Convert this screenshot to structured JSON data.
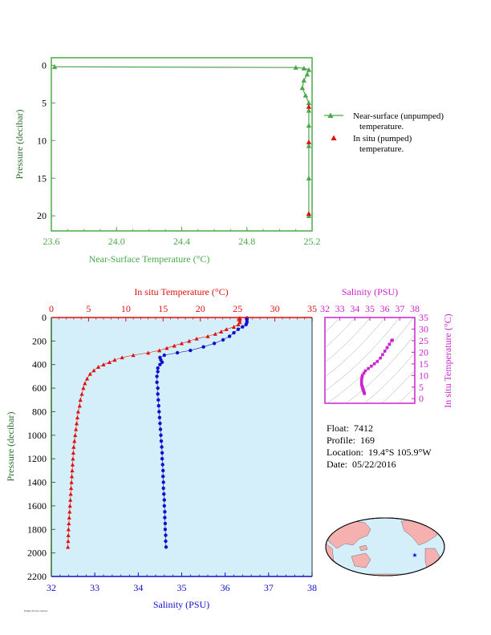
{
  "colors": {
    "green": "#4aa84a",
    "red": "#e01010",
    "blue": "#1010cc",
    "magenta": "#cc22cc",
    "dark_green": "#2e6e2e",
    "panel_bg": "#d4effa"
  },
  "float_info": {
    "float_label": "Float:",
    "float_value": "7412",
    "profile_label": "Profile:",
    "profile_value": "169",
    "location_label": "Location:",
    "location_value": "19.4°S  105.9°W",
    "date_label": "Date:",
    "date_value": "05/22/2016"
  },
  "footer_text": "PMEL/NOAA ARGO",
  "legend": {
    "near_surface_line1": "Near-surface (unpumped)",
    "near_surface_line2": "temperature.",
    "in_situ_line1": "In situ (pumped)",
    "in_situ_line2": "temperature."
  },
  "chart_data": [
    {
      "type": "line",
      "xlabel": "Near-Surface Temperature (°C)",
      "ylabel": "Pressure (decibar)",
      "xlim": [
        23.6,
        25.2
      ],
      "ylim": [
        22,
        -1
      ],
      "xticks": [
        "23.6",
        "24.0",
        "24.4",
        "24.8",
        "25.2"
      ],
      "yticks": [
        "0",
        "5",
        "10",
        "15",
        "20"
      ],
      "series": [
        {
          "name": "Near-surface (unpumped) temperature.",
          "points": [
            [
              23.62,
              0.2
            ],
            [
              25.1,
              0.3
            ],
            [
              25.15,
              0.4
            ],
            [
              25.18,
              0.6
            ],
            [
              25.17,
              1.2
            ],
            [
              25.15,
              2.0
            ],
            [
              25.14,
              3.0
            ],
            [
              25.16,
              4.0
            ],
            [
              25.18,
              5.0
            ],
            [
              25.18,
              6.0
            ],
            [
              25.18,
              8.0
            ],
            [
              25.18,
              10.7
            ],
            [
              25.18,
              15.0
            ],
            [
              25.18,
              20.0
            ]
          ]
        },
        {
          "name": "In situ (pumped) temperature.",
          "points": [
            [
              25.18,
              5.5
            ],
            [
              25.18,
              10.2
            ],
            [
              25.18,
              19.7
            ]
          ]
        }
      ]
    },
    {
      "type": "scatter",
      "ylabel": "Pressure (decibar)",
      "top_xlabel": "In situ Temperature (°C)",
      "bottom_xlabel": "Salinity (PSU)",
      "temperature_xlim": [
        0,
        35
      ],
      "salinity_xlim": [
        32,
        38
      ],
      "ylim": [
        2200,
        0
      ],
      "temperature_ticks": [
        "0",
        "5",
        "10",
        "15",
        "20",
        "25",
        "30",
        "35"
      ],
      "salinity_ticks": [
        "32",
        "33",
        "34",
        "35",
        "36",
        "37",
        "38"
      ],
      "pressure_ticks": [
        "0",
        "200",
        "400",
        "600",
        "800",
        "1000",
        "1200",
        "1400",
        "1600",
        "1800",
        "2000",
        "2200"
      ],
      "temperature_series": [
        [
          25.3,
          5
        ],
        [
          25.3,
          20
        ],
        [
          25.3,
          40
        ],
        [
          25.1,
          60
        ],
        [
          24.5,
          80
        ],
        [
          23.5,
          100
        ],
        [
          22.8,
          120
        ],
        [
          22.0,
          140
        ],
        [
          21.0,
          160
        ],
        [
          19.5,
          180
        ],
        [
          18.5,
          200
        ],
        [
          17.5,
          220
        ],
        [
          16.5,
          240
        ],
        [
          15.5,
          260
        ],
        [
          14.5,
          280
        ],
        [
          13.0,
          300
        ],
        [
          11.0,
          320
        ],
        [
          9.5,
          340
        ],
        [
          8.5,
          360
        ],
        [
          7.8,
          380
        ],
        [
          7.0,
          400
        ],
        [
          6.3,
          420
        ],
        [
          5.7,
          450
        ],
        [
          5.2,
          480
        ],
        [
          4.8,
          520
        ],
        [
          4.5,
          560
        ],
        [
          4.3,
          600
        ],
        [
          4.1,
          650
        ],
        [
          3.9,
          700
        ],
        [
          3.8,
          750
        ],
        [
          3.6,
          800
        ],
        [
          3.5,
          850
        ],
        [
          3.4,
          900
        ],
        [
          3.3,
          950
        ],
        [
          3.2,
          1000
        ],
        [
          3.1,
          1050
        ],
        [
          3.0,
          1100
        ],
        [
          2.95,
          1150
        ],
        [
          2.9,
          1200
        ],
        [
          2.85,
          1250
        ],
        [
          2.8,
          1300
        ],
        [
          2.75,
          1350
        ],
        [
          2.7,
          1400
        ],
        [
          2.65,
          1450
        ],
        [
          2.6,
          1500
        ],
        [
          2.55,
          1550
        ],
        [
          2.5,
          1600
        ],
        [
          2.45,
          1650
        ],
        [
          2.4,
          1700
        ],
        [
          2.35,
          1750
        ],
        [
          2.3,
          1800
        ],
        [
          2.28,
          1850
        ],
        [
          2.25,
          1900
        ],
        [
          2.22,
          1950
        ]
      ],
      "salinity_series": [
        [
          36.5,
          5
        ],
        [
          36.5,
          20
        ],
        [
          36.5,
          40
        ],
        [
          36.48,
          60
        ],
        [
          36.4,
          80
        ],
        [
          36.3,
          100
        ],
        [
          36.2,
          130
        ],
        [
          36.1,
          160
        ],
        [
          35.95,
          190
        ],
        [
          35.75,
          220
        ],
        [
          35.5,
          250
        ],
        [
          35.2,
          280
        ],
        [
          34.9,
          300
        ],
        [
          34.6,
          320
        ],
        [
          34.5,
          340
        ],
        [
          34.52,
          360
        ],
        [
          34.55,
          380
        ],
        [
          34.5,
          400
        ],
        [
          34.45,
          430
        ],
        [
          34.45,
          460
        ],
        [
          34.43,
          500
        ],
        [
          34.43,
          550
        ],
        [
          34.45,
          600
        ],
        [
          34.45,
          650
        ],
        [
          34.46,
          700
        ],
        [
          34.47,
          750
        ],
        [
          34.48,
          800
        ],
        [
          34.49,
          850
        ],
        [
          34.5,
          900
        ],
        [
          34.51,
          950
        ],
        [
          34.52,
          1000
        ],
        [
          34.53,
          1050
        ],
        [
          34.54,
          1100
        ],
        [
          34.55,
          1150
        ],
        [
          34.55,
          1200
        ],
        [
          34.56,
          1250
        ],
        [
          34.57,
          1300
        ],
        [
          34.57,
          1350
        ],
        [
          34.58,
          1400
        ],
        [
          34.58,
          1450
        ],
        [
          34.59,
          1500
        ],
        [
          34.6,
          1550
        ],
        [
          34.6,
          1600
        ],
        [
          34.61,
          1650
        ],
        [
          34.61,
          1700
        ],
        [
          34.62,
          1750
        ],
        [
          34.62,
          1800
        ],
        [
          34.63,
          1850
        ],
        [
          34.63,
          1900
        ],
        [
          34.64,
          1950
        ]
      ]
    },
    {
      "type": "scatter",
      "xlabel": "Salinity (PSU)",
      "ylabel": "In situ Temperature (°C)",
      "xlim": [
        32,
        38
      ],
      "ylim": [
        -2,
        35
      ],
      "xticks": [
        "32",
        "33",
        "34",
        "35",
        "36",
        "37",
        "38"
      ],
      "yticks": [
        "0",
        "5",
        "10",
        "15",
        "20",
        "25",
        "30",
        "35"
      ],
      "points": [
        [
          34.64,
          2.2
        ],
        [
          34.62,
          2.5
        ],
        [
          34.6,
          3.0
        ],
        [
          34.57,
          3.5
        ],
        [
          34.55,
          4.0
        ],
        [
          34.52,
          4.5
        ],
        [
          34.5,
          5.0
        ],
        [
          34.48,
          5.5
        ],
        [
          34.45,
          6.0
        ],
        [
          34.45,
          7.0
        ],
        [
          34.45,
          8.0
        ],
        [
          34.47,
          9.0
        ],
        [
          34.5,
          10.0
        ],
        [
          34.6,
          11.0
        ],
        [
          34.7,
          12.0
        ],
        [
          34.9,
          13.0
        ],
        [
          35.1,
          14.0
        ],
        [
          35.3,
          15.0
        ],
        [
          35.5,
          16.0
        ],
        [
          35.7,
          17.5
        ],
        [
          35.85,
          19.0
        ],
        [
          36.0,
          20.5
        ],
        [
          36.15,
          22.0
        ],
        [
          36.3,
          23.5
        ],
        [
          36.45,
          25.0
        ],
        [
          36.5,
          25.3
        ]
      ]
    }
  ]
}
